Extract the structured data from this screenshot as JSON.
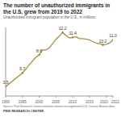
{
  "chart_data": {
    "type": "line",
    "title": "The number of unauthorized immigrants in the U.S. grew from 2019 to 2022",
    "subtitle": "Unauthorized immigrant population in the U.S., in millions",
    "source": "Source: Pew Research Center estimates based on augmented U.S. Census Bureau data.",
    "brand": "PEW RESEARCH CENTER",
    "x": [
      1990,
      1995,
      1996,
      1997,
      1998,
      1999,
      2000,
      2001,
      2002,
      2003,
      2004,
      2005,
      2006,
      2007,
      2008,
      2009,
      2010,
      2011,
      2012,
      2013,
      2014,
      2015,
      2016,
      2017,
      2018,
      2019,
      2020,
      2021,
      2022
    ],
    "values": [
      3.5,
      5.7,
      6.3,
      7.0,
      7.6,
      8.2,
      8.6,
      9.4,
      9.4,
      9.7,
      10.4,
      11.1,
      11.6,
      12.2,
      11.7,
      11.3,
      11.4,
      11.5,
      11.2,
      11.2,
      11.1,
      11.0,
      10.7,
      10.5,
      10.4,
      10.2,
      10.3,
      10.5,
      11.0
    ],
    "value_labels": [
      "3.5",
      "5.7",
      null,
      null,
      null,
      null,
      "8.6",
      null,
      null,
      null,
      null,
      null,
      null,
      "12.2",
      null,
      null,
      "11.4",
      null,
      null,
      null,
      null,
      null,
      null,
      null,
      null,
      "10.2",
      null,
      null,
      "11.0"
    ],
    "data_labels": true,
    "color": "#a88f45",
    "xlim": [
      1990,
      2022
    ],
    "xticks": [
      1990,
      1995,
      2000,
      2005,
      2010,
      2015,
      2020,
      2022
    ],
    "ylim": [
      2,
      13
    ],
    "yticks": [],
    "tick_labels": "x",
    "grid": false
  }
}
